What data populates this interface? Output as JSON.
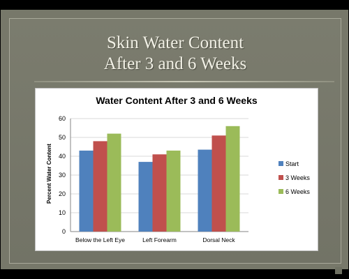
{
  "slide": {
    "title_line1": "Skin Water Content",
    "title_line2": "After 3 and 6 Weeks"
  },
  "chart_data": {
    "type": "bar",
    "title": "Water Content After 3 and 6 Weeks",
    "xlabel": "",
    "ylabel": "Percent Water Content",
    "ylim": [
      0,
      60
    ],
    "yticks": [
      0,
      10,
      20,
      30,
      40,
      50,
      60
    ],
    "grid": true,
    "legend_position": "right",
    "categories": [
      "Below the Left Eye",
      "Left Forearm",
      "Dorsal Neck"
    ],
    "series": [
      {
        "name": "Start",
        "color": "#4f81bd",
        "values": [
          43,
          37,
          43.5
        ]
      },
      {
        "name": "3 Weeks",
        "color": "#c0504d",
        "values": [
          48,
          41,
          51
        ]
      },
      {
        "name": "6 Weeks",
        "color": "#9bbb59",
        "values": [
          52,
          43,
          56
        ]
      }
    ]
  }
}
